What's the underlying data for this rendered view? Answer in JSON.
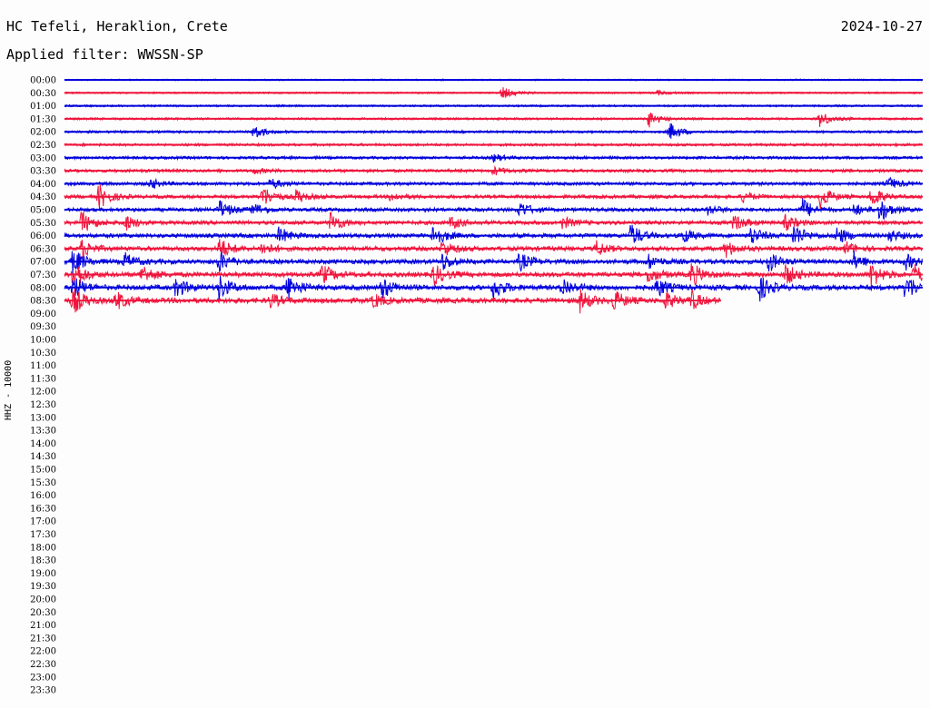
{
  "header": {
    "station": "HC Tefeli, Heraklion, Crete",
    "date": "2024-10-27",
    "filter_text": "Applied filter: WWSSN-SP"
  },
  "chart_data": {
    "type": "line",
    "title": "HC Tefeli, Heraklion, Crete",
    "ylabel": "HHZ - 10000",
    "tick_labels": [
      "00:00",
      "00:30",
      "01:00",
      "01:30",
      "02:00",
      "02:30",
      "03:00",
      "03:30",
      "04:00",
      "04:30",
      "05:00",
      "05:30",
      "06:00",
      "06:30",
      "07:00",
      "07:30",
      "08:00",
      "08:30",
      "09:00",
      "09:30",
      "10:00",
      "10:30",
      "11:00",
      "11:30",
      "12:00",
      "12:30",
      "13:00",
      "13:30",
      "14:00",
      "14:30",
      "15:00",
      "15:30",
      "16:00",
      "16:30",
      "17:00",
      "17:30",
      "18:00",
      "18:30",
      "19:00",
      "19:30",
      "20:00",
      "20:30",
      "21:00",
      "21:30",
      "22:00",
      "22:30",
      "23:00",
      "23:30"
    ],
    "colors": {
      "even_rows": "#0000dd",
      "odd_rows": "#f0143c"
    },
    "grid": false,
    "recorded_rows": 18,
    "last_row_fraction": 0.765,
    "events": [
      {
        "row": 1,
        "at": [
          0.51,
          0.69
        ],
        "amp": [
          1.6,
          0.6
        ]
      },
      {
        "row": 3,
        "at": [
          0.68,
          0.88
        ],
        "amp": [
          2.2,
          2.0
        ]
      },
      {
        "row": 4,
        "at": [
          0.22,
          0.705
        ],
        "amp": [
          1.8,
          2.2
        ]
      },
      {
        "row": 6,
        "at": [
          0.5
        ],
        "amp": [
          0.9
        ]
      },
      {
        "row": 7,
        "at": [
          0.22,
          0.5
        ],
        "amp": [
          0.6,
          1.0
        ]
      },
      {
        "row": 8,
        "at": [
          0.1,
          0.24,
          0.96
        ],
        "amp": [
          1.2,
          1.3,
          1.5
        ]
      },
      {
        "row": 9,
        "at": [
          0.04,
          0.23,
          0.27,
          0.38,
          0.79,
          0.88,
          0.94
        ],
        "amp": [
          3.0,
          2.8,
          1.6,
          1.0,
          1.3,
          3.0,
          2.6
        ]
      },
      {
        "row": 10,
        "at": [
          0.18,
          0.22,
          0.53,
          0.75,
          0.86,
          0.92,
          0.95
        ],
        "amp": [
          2.4,
          1.6,
          2.0,
          1.2,
          2.6,
          1.4,
          3.0
        ]
      },
      {
        "row": 11,
        "at": [
          0.02,
          0.07,
          0.31,
          0.45,
          0.58,
          0.78,
          0.84
        ],
        "amp": [
          2.8,
          2.0,
          2.6,
          1.6,
          1.4,
          2.0,
          1.8
        ]
      },
      {
        "row": 12,
        "at": [
          0.25,
          0.43,
          0.66,
          0.72,
          0.8,
          0.85,
          0.9,
          0.96
        ],
        "amp": [
          2.0,
          3.0,
          2.8,
          1.8,
          2.2,
          3.0,
          2.2,
          1.6
        ]
      },
      {
        "row": 13,
        "at": [
          0.02,
          0.18,
          0.23,
          0.44,
          0.62,
          0.77,
          0.91
        ],
        "amp": [
          2.2,
          2.8,
          1.6,
          2.0,
          1.8,
          2.0,
          1.6
        ]
      },
      {
        "row": 14,
        "at": [
          0.01,
          0.07,
          0.18,
          0.44,
          0.53,
          0.68,
          0.82,
          0.92,
          0.98
        ],
        "amp": [
          3.2,
          2.0,
          2.6,
          2.0,
          2.2,
          1.8,
          2.4,
          2.0,
          1.8
        ]
      },
      {
        "row": 15,
        "at": [
          0.01,
          0.09,
          0.3,
          0.43,
          0.68,
          0.73,
          0.84,
          0.94,
          0.99
        ],
        "amp": [
          3.6,
          2.4,
          2.4,
          2.6,
          2.0,
          3.0,
          2.6,
          3.0,
          2.4
        ]
      },
      {
        "row": 16,
        "at": [
          0.01,
          0.13,
          0.18,
          0.26,
          0.37,
          0.5,
          0.58,
          0.69,
          0.81,
          0.98
        ],
        "amp": [
          2.8,
          2.4,
          3.0,
          3.2,
          2.6,
          2.6,
          2.4,
          2.4,
          3.0,
          3.4
        ]
      },
      {
        "row": 17,
        "at": [
          0.01,
          0.06,
          0.24,
          0.36,
          0.6,
          0.64,
          0.7,
          0.73
        ],
        "amp": [
          3.2,
          2.2,
          1.6,
          1.6,
          2.8,
          2.4,
          2.0,
          2.2
        ]
      }
    ]
  }
}
